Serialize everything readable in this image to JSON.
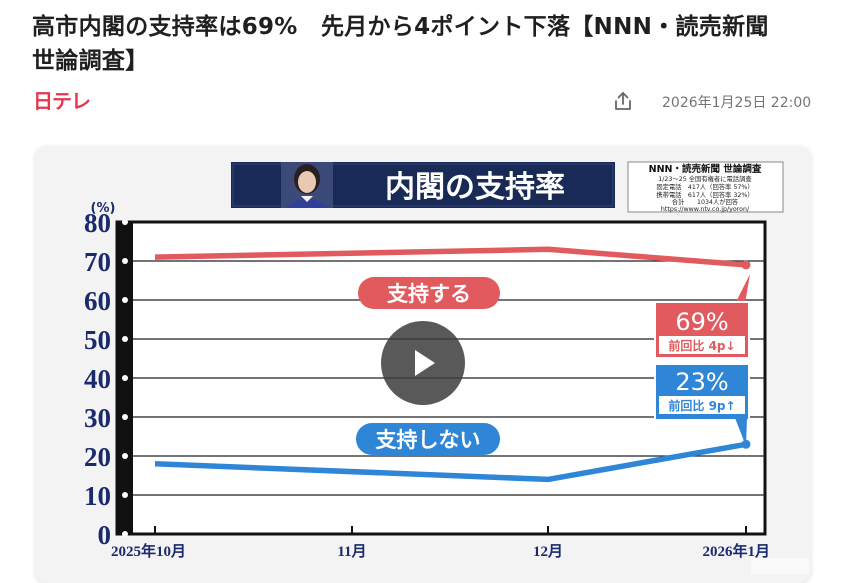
{
  "article": {
    "headline": "高市内閣の支持率は69%　先月から4ポイント下落【NNN・読売新聞　世論調査】",
    "publisher": "日テレ",
    "logo_text": "日テレ",
    "date": "2026年1月25日 22:00",
    "share_icon": "share-icon"
  },
  "video": {
    "banner_title": "内閣の支持率",
    "survey_info": {
      "title": "NNN・読売新聞 世論調査",
      "lines": [
        "1/23～25 全国有権者に電話調査",
        "固定電話　417人（回答率 57%）",
        "携帯電話　617人（回答率 32%）",
        "合計　　1034人が回答",
        "https://www.ntv.co.jp/yoron/"
      ]
    },
    "play_icon": "play-icon",
    "colors": {
      "support": "#e05a5e",
      "nonsupport": "#2f86d6",
      "navy": "#1a2a57",
      "axis": "#1a2a6c"
    }
  },
  "chart_data": {
    "type": "line",
    "unit_label": "(%)",
    "ylim": [
      0,
      80
    ],
    "yticks": [
      0,
      10,
      20,
      30,
      40,
      50,
      60,
      70,
      80
    ],
    "categories": [
      "2025年10月",
      "11月",
      "12月",
      "2026年1月"
    ],
    "series": [
      {
        "name": "支持する",
        "values": [
          71,
          null,
          73,
          69
        ],
        "callout": {
          "value": "69%",
          "delta": "前回比 4p↓"
        }
      },
      {
        "name": "支持しない",
        "values": [
          18,
          null,
          14,
          23
        ],
        "callout": {
          "value": "23%",
          "delta": "前回比 9p↑"
        }
      }
    ]
  }
}
